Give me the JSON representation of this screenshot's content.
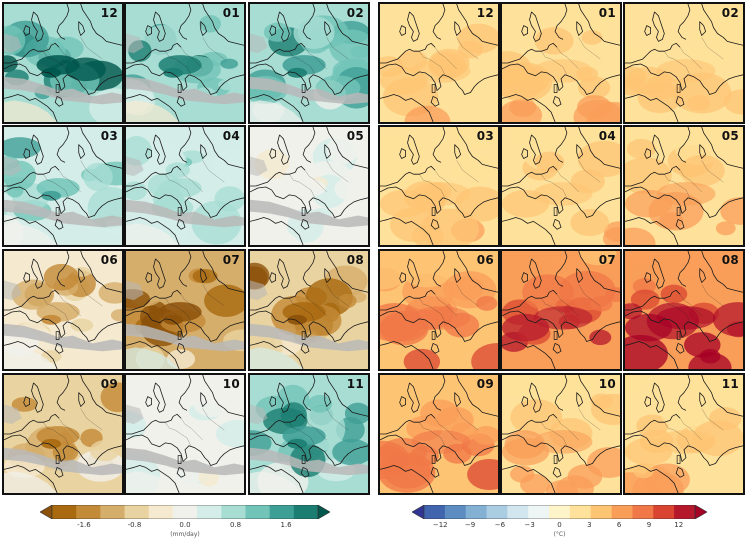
{
  "chart_data": [
    {
      "type": "heatmap",
      "description_variable": "precipitation anomaly",
      "panels": [
        {
          "label": "12",
          "wet": 0.75
        },
        {
          "label": "01",
          "wet": 0.62
        },
        {
          "label": "02",
          "wet": 0.55
        },
        {
          "label": "03",
          "wet": 0.45
        },
        {
          "label": "04",
          "wet": 0.3
        },
        {
          "label": "05",
          "wet": 0.05
        },
        {
          "label": "06",
          "wet": -0.45
        },
        {
          "label": "07",
          "wet": -0.8
        },
        {
          "label": "08",
          "wet": -0.7
        },
        {
          "label": "09",
          "wet": -0.55
        },
        {
          "label": "10",
          "wet": 0.05
        },
        {
          "label": "11",
          "wet": 0.55
        }
      ],
      "colorbar": {
        "ticks": [
          "-1.6",
          "-0.8",
          "0.0",
          "0.8",
          "1.6"
        ],
        "unit": "(mm/day)",
        "colors": [
          "#8c510a",
          "#a8690f",
          "#c38a37",
          "#d6ae6b",
          "#e9d3a0",
          "#f5ead0",
          "#f1f1ec",
          "#d4ede8",
          "#a8ddd3",
          "#72c4b8",
          "#3e9f96",
          "#1c7e72",
          "#00574e"
        ]
      }
    },
    {
      "type": "heatmap",
      "description_variable": "temperature anomaly",
      "panels": [
        {
          "label": "12",
          "heat": 0.3
        },
        {
          "label": "01",
          "heat": 0.3
        },
        {
          "label": "02",
          "heat": 0.28
        },
        {
          "label": "03",
          "heat": 0.28
        },
        {
          "label": "04",
          "heat": 0.3
        },
        {
          "label": "05",
          "heat": 0.35
        },
        {
          "label": "06",
          "heat": 0.55
        },
        {
          "label": "07",
          "heat": 0.75
        },
        {
          "label": "08",
          "heat": 0.85
        },
        {
          "label": "09",
          "heat": 0.55
        },
        {
          "label": "10",
          "heat": 0.35
        },
        {
          "label": "11",
          "heat": 0.3
        }
      ],
      "colorbar": {
        "ticks": [
          "−12",
          "−9",
          "−6",
          "−3",
          "0",
          "3",
          "6",
          "9",
          "12"
        ],
        "unit": "(°C)",
        "colors": [
          "#313695",
          "#4064ad",
          "#5c8cc0",
          "#84b0d4",
          "#abcde2",
          "#d1e6ef",
          "#eef5f5",
          "#fff3c9",
          "#fee19a",
          "#fdc474",
          "#f99e59",
          "#f07747",
          "#d94530",
          "#b5172b",
          "#a50026"
        ]
      }
    }
  ],
  "colors": {
    "coast": "#1a1a1a",
    "gray_land": "#b8b8b8",
    "panel_border": "#111111"
  }
}
